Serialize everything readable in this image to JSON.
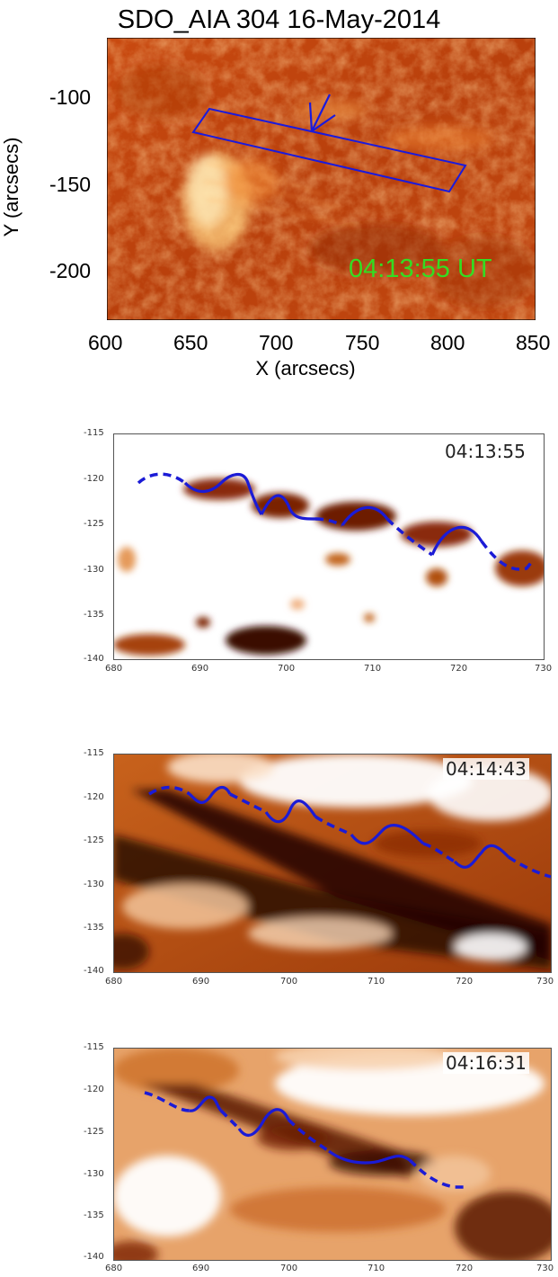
{
  "main_image": {
    "title": "SDO_AIA 304 16-May-2014",
    "timestamp": "04:13:55 UT",
    "x_axis_label": "X (arcsecs)",
    "y_axis_label": "Y (arcsecs)",
    "x_ticks": [
      "600",
      "650",
      "700",
      "750",
      "800",
      "850"
    ],
    "y_ticks": [
      "-100",
      "-150",
      "-200"
    ],
    "x_range": [
      600,
      850
    ],
    "y_range": [
      -230,
      -75
    ],
    "annotation_color": "#1a1add",
    "timestamp_color": "#33dd22",
    "colormap": "sdo-aia-304"
  },
  "panels": [
    {
      "timestamp": "04:13:55",
      "x_ticks": [
        "680",
        "690",
        "700",
        "710",
        "720",
        "730"
      ],
      "y_ticks": [
        "-115",
        "-120",
        "-125",
        "-130",
        "-135",
        "-140"
      ],
      "x_range": [
        680,
        730
      ],
      "y_range": [
        -140,
        -115
      ]
    },
    {
      "timestamp": "04:14:43",
      "x_ticks": [
        "680",
        "690",
        "700",
        "710",
        "720",
        "730"
      ],
      "y_ticks": [
        "-115",
        "-120",
        "-125",
        "-130",
        "-135",
        "-140"
      ],
      "x_range": [
        680,
        730
      ],
      "y_range": [
        -140,
        -115
      ]
    },
    {
      "timestamp": "04:16:31",
      "x_ticks": [
        "680",
        "690",
        "700",
        "710",
        "720",
        "730"
      ],
      "y_ticks": [
        "-115",
        "-120",
        "-125",
        "-130",
        "-135",
        "-140"
      ],
      "x_range": [
        680,
        730
      ],
      "y_range": [
        -140,
        -115
      ]
    }
  ],
  "colors": {
    "curve": "#1b1bd6",
    "dark_feature": "#2a0800",
    "mid_feature": "#b0490f",
    "light_bg": "#ffffff"
  }
}
